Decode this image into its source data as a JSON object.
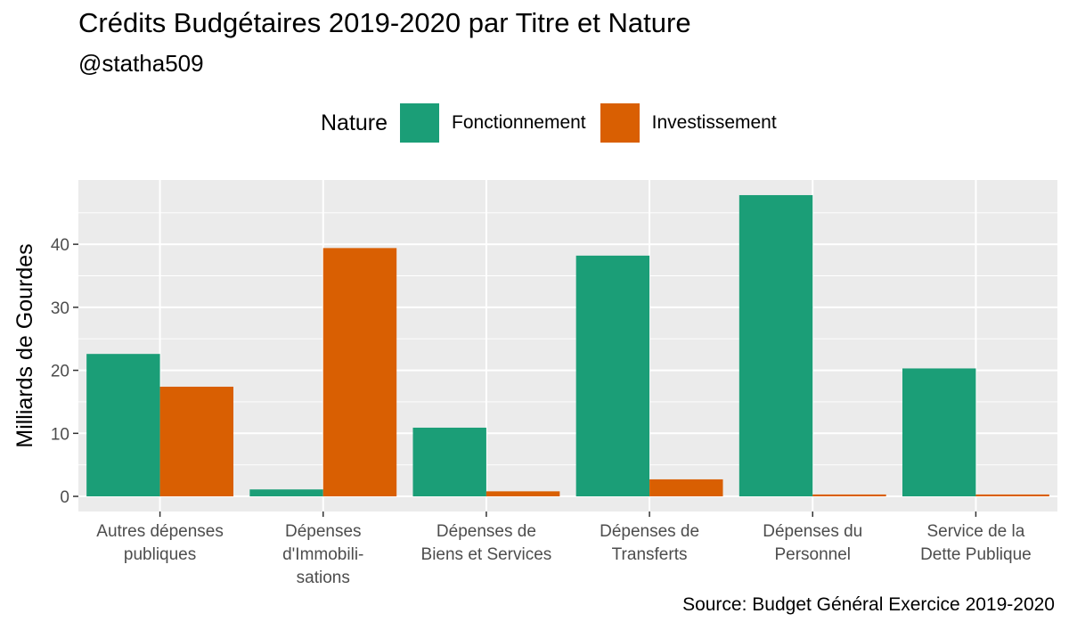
{
  "title": "Crédits Budgétaires 2019-2020 par Titre et Nature",
  "subtitle": "@statha509",
  "caption": "Source: Budget Général Exercice 2019-2020",
  "legend": {
    "title": "Nature",
    "items": [
      {
        "label": "Fonctionnement",
        "color": "#1B9E77"
      },
      {
        "label": "Investissement",
        "color": "#D95F02"
      }
    ]
  },
  "chart_data": {
    "type": "bar",
    "title": "Crédits Budgétaires 2019-2020 par Titre et Nature",
    "subtitle": "@statha509",
    "xlabel": "",
    "ylabel": "Milliards de Gourdes",
    "categories": [
      [
        "Autres dépenses",
        "publiques"
      ],
      [
        "Dépenses",
        "d'Immobili-",
        "sations"
      ],
      [
        "Dépenses de",
        "Biens et Services"
      ],
      [
        "Dépenses de",
        "Transferts"
      ],
      [
        "Dépenses du",
        "Personnel"
      ],
      [
        "Service de la",
        "Dette Publique"
      ]
    ],
    "series": [
      {
        "name": "Fonctionnement",
        "color": "#1B9E77",
        "values": [
          22.6,
          1.1,
          10.9,
          38.2,
          47.8,
          20.3
        ]
      },
      {
        "name": "Investissement",
        "color": "#D95F02",
        "values": [
          17.4,
          39.4,
          0.8,
          2.7,
          0.3,
          0.3
        ]
      }
    ],
    "y_ticks": [
      0,
      10,
      20,
      30,
      40
    ],
    "ylim": [
      -2.4,
      50.2
    ],
    "grid": true,
    "legend_position": "top"
  }
}
